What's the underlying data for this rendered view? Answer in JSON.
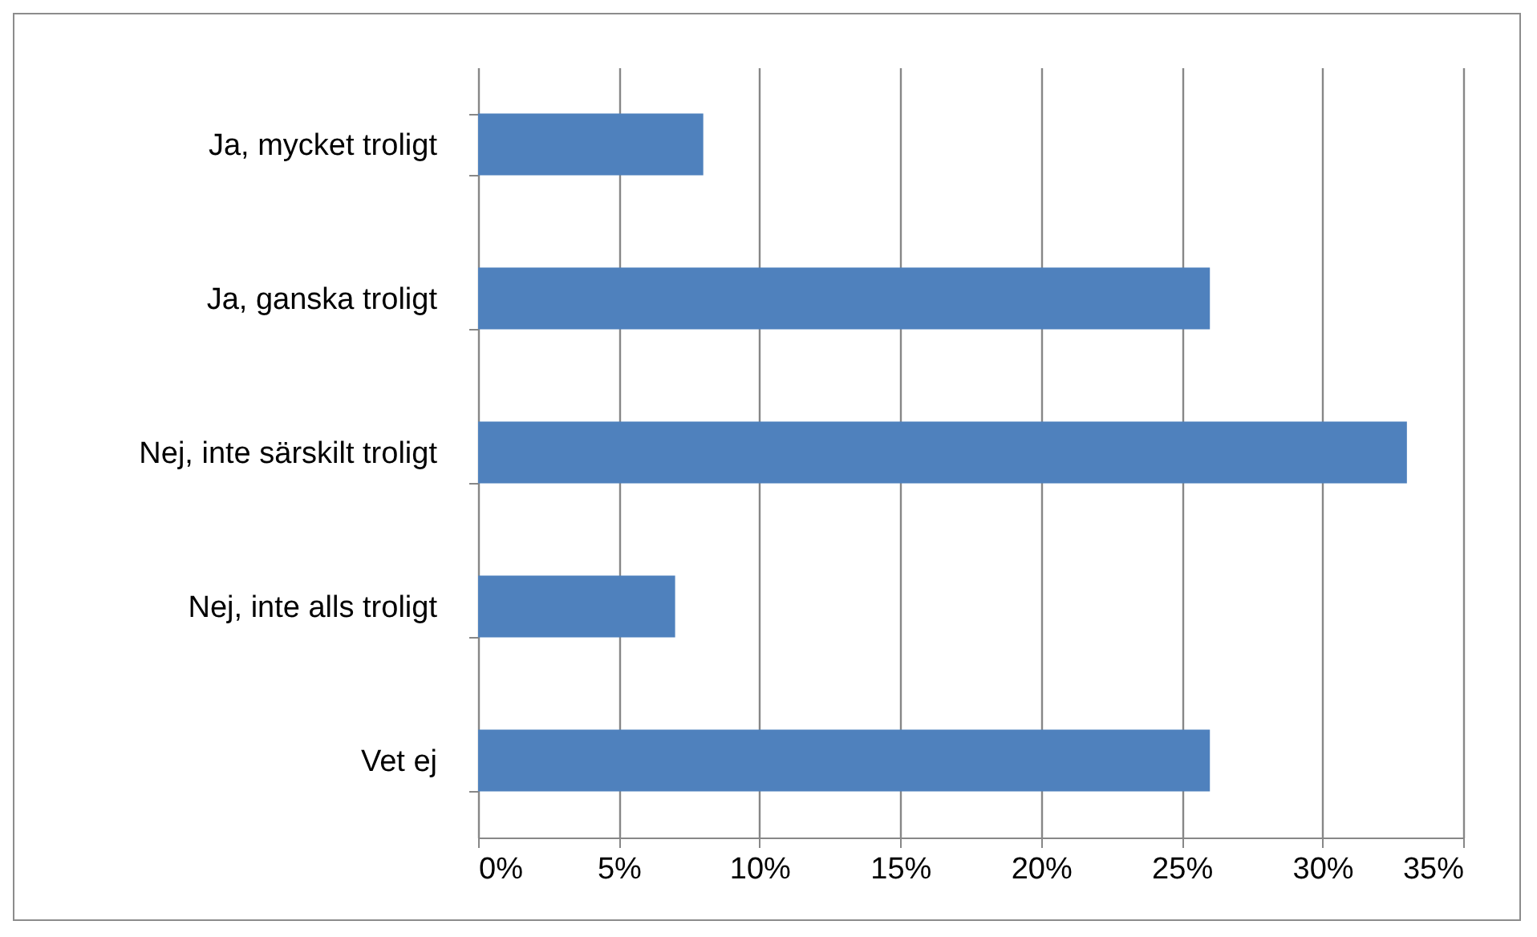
{
  "chart_data": {
    "type": "bar",
    "orientation": "horizontal",
    "categories": [
      "Ja, mycket troligt",
      "Ja, ganska troligt",
      "Nej, inte särskilt troligt",
      "Nej, inte alls troligt",
      "Vet ej"
    ],
    "values": [
      8,
      26,
      33,
      7,
      26
    ],
    "color": "#4f81bd",
    "xlim": [
      0,
      35
    ],
    "xticks": [
      {
        "value": 0,
        "label": "0%"
      },
      {
        "value": 5,
        "label": "5%"
      },
      {
        "value": 10,
        "label": "10%"
      },
      {
        "value": 15,
        "label": "15%"
      },
      {
        "value": 20,
        "label": "20%"
      },
      {
        "value": 25,
        "label": "25%"
      },
      {
        "value": 30,
        "label": "30%"
      },
      {
        "value": 35,
        "label": "35%"
      }
    ],
    "grid": "x"
  }
}
